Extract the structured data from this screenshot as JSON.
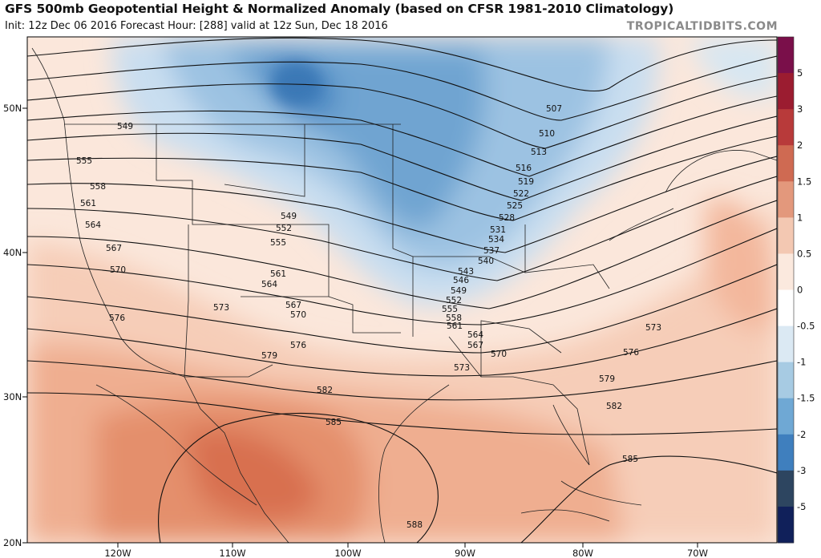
{
  "header": {
    "title": "GFS 500mb Geopotential Height & Normalized Anomaly (based on CFSR 1981-2010 Climatology)",
    "subtitle": "Init: 12z Dec 06 2016   Forecast Hour: [288]   valid at 12z Sun, Dec 18 2016",
    "brand": "TROPICALTIDBITS.COM"
  },
  "chart_data": {
    "type": "map-contour",
    "variable": "500mb Geopotential Height (dam) with normalized anomaly shading",
    "lat_ticks": [
      "50N",
      "40N",
      "30N",
      "20N"
    ],
    "lon_ticks": [
      "120W",
      "110W",
      "100W",
      "90W",
      "80W",
      "70W"
    ],
    "colorbar": {
      "labels": [
        "5",
        "3",
        "2",
        "1.5",
        "1",
        "0.5",
        "0",
        "-0.5",
        "-1",
        "-1.5",
        "-2",
        "-3",
        "-5"
      ],
      "colors": [
        "#7a0f4a",
        "#9b1c30",
        "#b83a3a",
        "#cf6a52",
        "#e3987c",
        "#f3c8b2",
        "#fbe9de",
        "#ffffff",
        "#dbe9f3",
        "#a7cbe3",
        "#6fa8d4",
        "#3f7fbe",
        "#2d4560",
        "#10205a"
      ]
    },
    "contour_labels": [
      "507",
      "510",
      "513",
      "516",
      "519",
      "522",
      "525",
      "528",
      "531",
      "534",
      "537",
      "540",
      "543",
      "546",
      "549",
      "552",
      "555",
      "558",
      "561",
      "564",
      "567",
      "570",
      "573",
      "576",
      "579",
      "582",
      "585",
      "588"
    ]
  }
}
